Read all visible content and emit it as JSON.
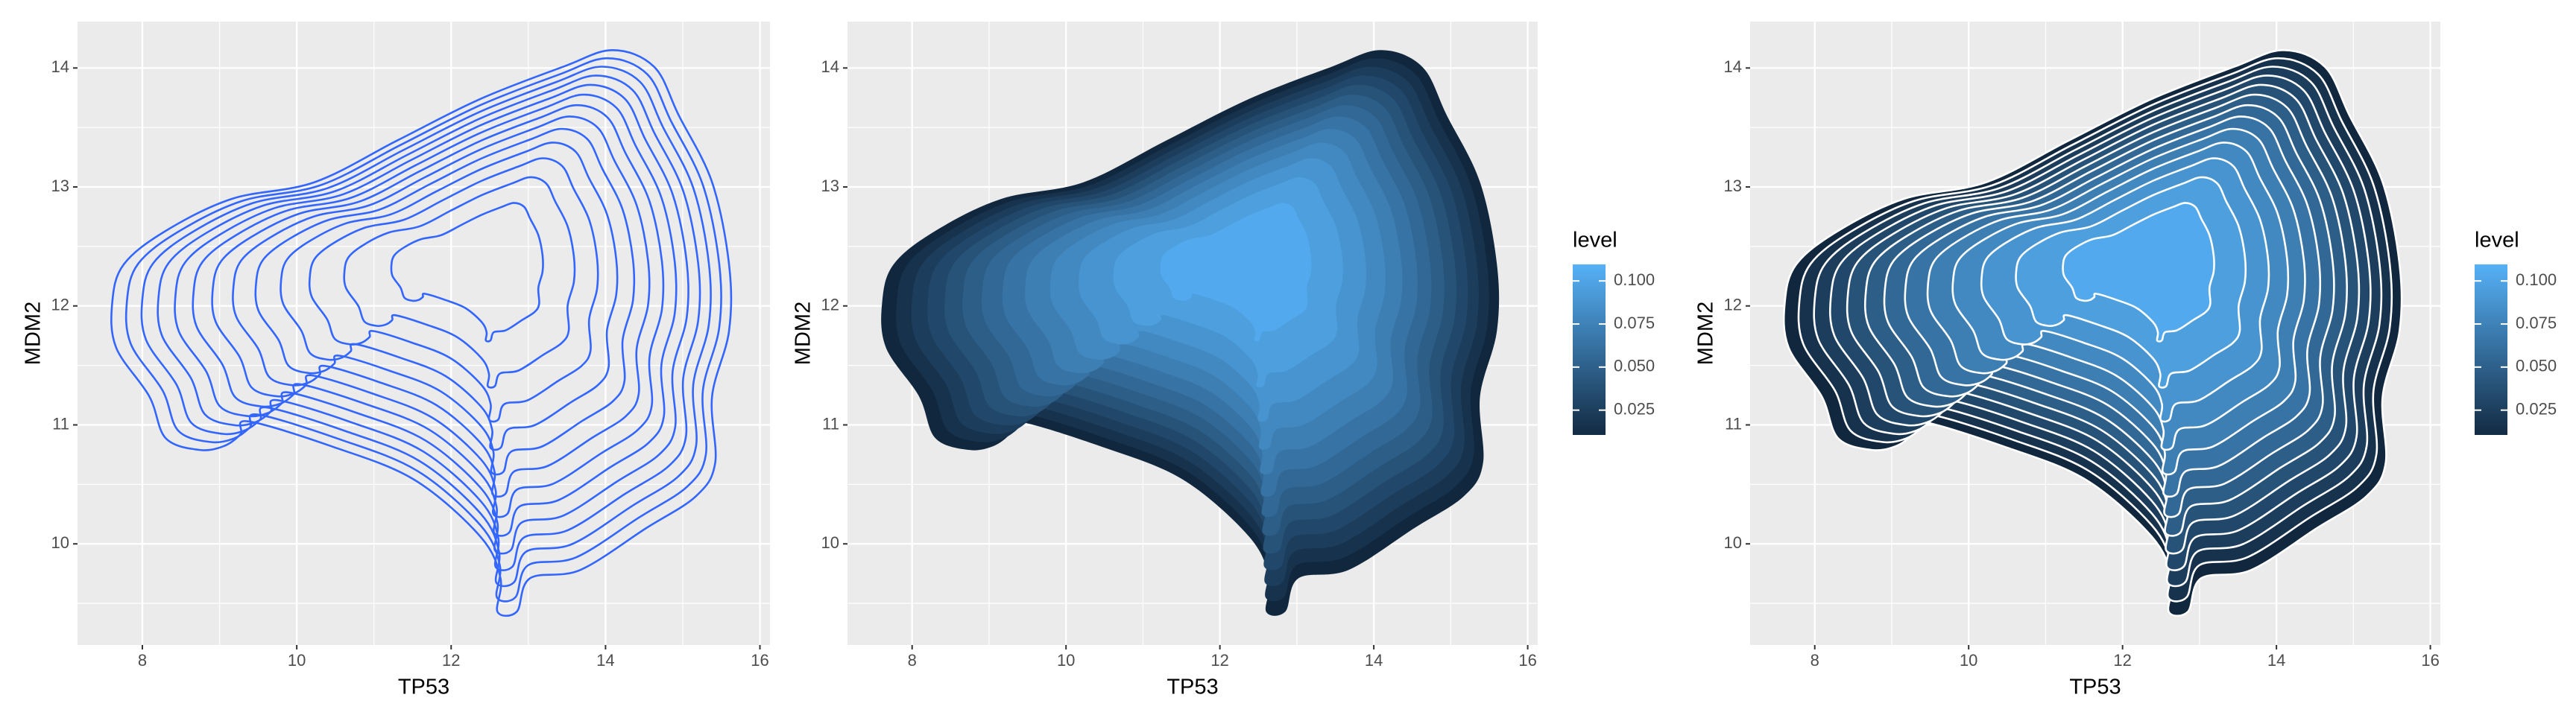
{
  "chart_data": [
    {
      "type": "contour",
      "xlabel": "TP53",
      "ylabel": "MDM2",
      "xlim": [
        7.16,
        16.13
      ],
      "ylim": [
        9.15,
        14.39
      ],
      "xticks": [
        8,
        10,
        12,
        14,
        16
      ],
      "yticks": [
        10,
        11,
        12,
        13,
        14
      ],
      "minor_xticks": [
        9,
        11,
        13,
        15
      ],
      "minor_yticks": [
        9.5,
        10.5,
        11.5,
        12.5,
        13.5
      ],
      "grid": true,
      "filled": false,
      "line_color": "#3366FF",
      "levels": [
        0.008,
        0.016,
        0.024,
        0.032,
        0.04,
        0.048,
        0.056,
        0.064,
        0.072,
        0.08,
        0.088,
        0.096,
        0.104
      ],
      "peak": [
        12.4,
        12.45
      ],
      "contour_x": [
        7.61,
        7.76,
        8.3,
        9.16,
        10.23,
        11.3,
        12.38,
        13.45,
        14.09,
        14.63,
        14.95,
        15.38,
        15.6,
        15.6,
        15.38,
        15.42,
        15.17,
        14.52,
        13.67,
        13.02,
        12.85,
        12.6,
        12.64,
        12.38,
        11.52,
        10.45,
        9.37,
        9.27,
        9.05,
        8.73,
        8.3,
        8.09,
        7.66
      ],
      "contour_y": [
        12.03,
        12.35,
        12.63,
        12.9,
        13.04,
        13.39,
        13.74,
        14.01,
        14.15,
        14.01,
        13.6,
        13.04,
        12.35,
        11.79,
        11.24,
        10.68,
        10.4,
        10.13,
        9.78,
        9.71,
        9.43,
        9.43,
        9.71,
        10.06,
        10.54,
        10.82,
        11.03,
        10.92,
        10.82,
        10.79,
        10.89,
        11.24,
        11.65
      ]
    },
    {
      "type": "contour",
      "xlabel": "TP53",
      "ylabel": "MDM2",
      "xlim": [
        7.16,
        16.13
      ],
      "ylim": [
        9.15,
        14.39
      ],
      "xticks": [
        8,
        10,
        12,
        14,
        16
      ],
      "yticks": [
        10,
        11,
        12,
        13,
        14
      ],
      "minor_xticks": [
        9,
        11,
        13,
        15
      ],
      "minor_yticks": [
        9.5,
        10.5,
        11.5,
        12.5,
        13.5
      ],
      "grid": true,
      "filled": true,
      "low_color": "#132B43",
      "high_color": "#56B1F7",
      "legend_title": "level",
      "colorbar_lim": [
        0.0106,
        0.1096
      ],
      "legend_ticks": [
        0.025,
        {
          "value": 0.05,
          "label": "0.050"
        },
        0.075,
        {
          "value": 0.1,
          "label": "0.100"
        }
      ],
      "levels": [
        0.008,
        0.016,
        0.024,
        0.032,
        0.04,
        0.048,
        0.056,
        0.064,
        0.072,
        0.08,
        0.088,
        0.096,
        0.104
      ],
      "peak": [
        12.4,
        12.45
      ],
      "contour_x": [
        7.61,
        7.76,
        8.3,
        9.16,
        10.23,
        11.3,
        12.38,
        13.45,
        14.09,
        14.63,
        14.95,
        15.38,
        15.6,
        15.6,
        15.38,
        15.42,
        15.17,
        14.52,
        13.67,
        13.02,
        12.85,
        12.6,
        12.64,
        12.38,
        11.52,
        10.45,
        9.37,
        9.27,
        9.05,
        8.73,
        8.3,
        8.09,
        7.66
      ],
      "contour_y": [
        12.03,
        12.35,
        12.63,
        12.9,
        13.04,
        13.39,
        13.74,
        14.01,
        14.15,
        14.01,
        13.6,
        13.04,
        12.35,
        11.79,
        11.24,
        10.68,
        10.4,
        10.13,
        9.78,
        9.71,
        9.43,
        9.43,
        9.71,
        10.06,
        10.54,
        10.82,
        11.03,
        10.92,
        10.82,
        10.79,
        10.89,
        11.24,
        11.65
      ]
    },
    {
      "type": "contour",
      "xlabel": "TP53",
      "ylabel": "MDM2",
      "xlim": [
        7.16,
        16.13
      ],
      "ylim": [
        9.15,
        14.39
      ],
      "xticks": [
        8,
        10,
        12,
        14,
        16
      ],
      "yticks": [
        10,
        11,
        12,
        13,
        14
      ],
      "minor_xticks": [
        9,
        11,
        13,
        15
      ],
      "minor_yticks": [
        9.5,
        10.5,
        11.5,
        12.5,
        13.5
      ],
      "grid": true,
      "filled": true,
      "line_color": "#FFFFFF",
      "low_color": "#132B43",
      "high_color": "#56B1F7",
      "legend_title": "level",
      "colorbar_lim": [
        0.0106,
        0.1096
      ],
      "legend_ticks": [
        0.025,
        {
          "value": 0.05,
          "label": "0.050"
        },
        0.075,
        {
          "value": 0.1,
          "label": "0.100"
        }
      ],
      "levels": [
        0.008,
        0.016,
        0.024,
        0.032,
        0.04,
        0.048,
        0.056,
        0.064,
        0.072,
        0.08,
        0.088,
        0.096,
        0.104
      ],
      "peak": [
        12.4,
        12.45
      ],
      "contour_x": [
        7.61,
        7.76,
        8.3,
        9.16,
        10.23,
        11.3,
        12.38,
        13.45,
        14.09,
        14.63,
        14.95,
        15.38,
        15.6,
        15.6,
        15.38,
        15.42,
        15.17,
        14.52,
        13.67,
        13.02,
        12.85,
        12.6,
        12.64,
        12.38,
        11.52,
        10.45,
        9.37,
        9.27,
        9.05,
        8.73,
        8.3,
        8.09,
        7.66
      ],
      "contour_y": [
        12.03,
        12.35,
        12.63,
        12.9,
        13.04,
        13.39,
        13.74,
        14.01,
        14.15,
        14.01,
        13.6,
        13.04,
        12.35,
        11.79,
        11.24,
        10.68,
        10.4,
        10.13,
        9.78,
        9.71,
        9.43,
        9.43,
        9.71,
        10.06,
        10.54,
        10.82,
        11.03,
        10.92,
        10.82,
        10.79,
        10.89,
        11.24,
        11.65
      ]
    }
  ]
}
